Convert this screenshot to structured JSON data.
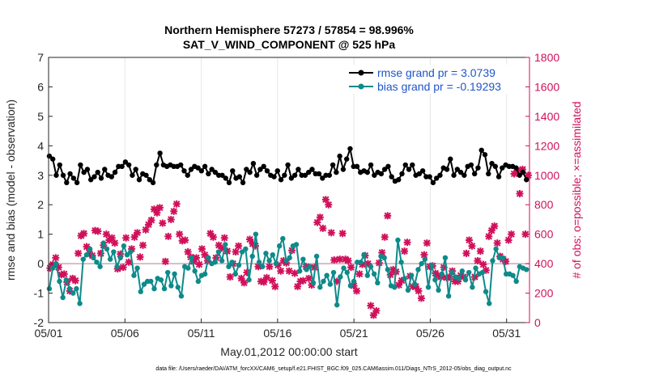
{
  "chart_data": {
    "type": "line",
    "title_line1": "Northern Hemisphere 57273 / 57854 = 98.996%",
    "title_line2": "SAT_V_WIND_COMPONENT @ 525 hPa",
    "xlabel": "May.01,2012 00:00:00 start",
    "ylabel_left": "rmse and bias (model - observation)",
    "ylabel_right": "# of obs: o=possible; ×=assimilated",
    "ylim_left": [
      -2,
      7
    ],
    "ylim_right": [
      0,
      1800
    ],
    "xlim_days": [
      0,
      31.5
    ],
    "x_ticks": [
      {
        "day": 0,
        "label": "05/01"
      },
      {
        "day": 5,
        "label": "05/06"
      },
      {
        "day": 10,
        "label": "05/11"
      },
      {
        "day": 15,
        "label": "05/16"
      },
      {
        "day": 20,
        "label": "05/21"
      },
      {
        "day": 25,
        "label": "05/26"
      },
      {
        "day": 30,
        "label": "05/31"
      }
    ],
    "y_ticks_left": [
      "-2",
      "-1",
      "0",
      "1",
      "2",
      "3",
      "4",
      "5",
      "6",
      "7"
    ],
    "y_ticks_right": [
      "0",
      "200",
      "400",
      "600",
      "800",
      "1000",
      "1200",
      "1400",
      "1600",
      "1800"
    ],
    "legend_position": "top-right",
    "series": [
      {
        "name": "rmse grand pr = 3.0739",
        "color": "#000000",
        "marker": "filled-circle",
        "values": [
          3.65,
          3.55,
          3.0,
          3.35,
          3.0,
          2.75,
          3.05,
          2.9,
          2.75,
          3.35,
          3.1,
          3.2,
          2.85,
          2.95,
          3.1,
          2.9,
          3.2,
          3.0,
          2.95,
          3.1,
          3.3,
          3.3,
          3.45,
          3.35,
          3.0,
          3.2,
          2.85,
          3.05,
          3.0,
          2.85,
          2.75,
          3.35,
          3.75,
          3.35,
          3.3,
          3.35,
          3.3,
          3.3,
          3.35,
          3.15,
          3.0,
          3.2,
          3.3,
          3.25,
          3.15,
          3.3,
          3.05,
          3.2,
          3.1,
          3.0,
          3.0,
          2.9,
          2.75,
          3.15,
          2.9,
          2.95,
          2.75,
          3.2,
          3.1,
          3.4,
          3.0,
          3.2,
          3.3,
          3.15,
          3.0,
          2.95,
          3.15,
          2.85,
          3.0,
          3.35,
          2.9,
          3.0,
          3.2,
          3.0,
          3.0,
          3.1,
          3.2,
          3.05,
          3.05,
          2.9,
          3.0,
          3.0,
          3.35,
          3.1,
          3.65,
          3.2,
          3.55,
          3.9,
          3.3,
          3.3,
          3.1,
          3.15,
          3.1,
          3.35,
          3.0,
          3.1,
          3.05,
          3.2,
          3.3,
          2.95,
          2.8,
          2.85,
          3.05,
          3.35,
          3.2,
          3.35,
          3.0,
          3.05,
          3.15,
          2.95,
          2.95,
          2.75,
          2.9,
          3.0,
          3.25,
          3.2,
          3.55,
          3.0,
          3.2,
          3.1,
          3.0,
          3.3,
          3.35,
          3.05,
          3.25,
          3.85,
          3.7,
          3.05,
          3.4,
          3.3,
          2.95,
          3.25,
          3.35,
          3.3,
          3.3,
          3.25,
          3.0,
          3.1,
          2.85
        ]
      },
      {
        "name": "bias grand pr = -0.19293",
        "color": "#0e8a8a",
        "marker": "filled-circle",
        "values": [
          -0.85,
          -0.15,
          0.0,
          -0.6,
          -1.15,
          -0.55,
          -0.85,
          -1.0,
          -0.85,
          -1.35,
          0.15,
          0.3,
          0.5,
          0.2,
          0.05,
          -0.1,
          0.7,
          0.5,
          0.15,
          0.4,
          -0.1,
          0.2,
          0.6,
          0.3,
          0.4,
          -0.4,
          -0.15,
          -0.95,
          -0.7,
          -0.6,
          -0.6,
          -0.85,
          -0.5,
          -0.55,
          -0.85,
          -0.3,
          -0.75,
          -0.35,
          -0.8,
          -1.1,
          -0.1,
          -0.15,
          0.2,
          -0.25,
          -0.6,
          -0.4,
          -0.35,
          0.2,
          0.0,
          0.05,
          0.4,
          0.1,
          0.65,
          -0.1,
          0.05,
          -0.35,
          -0.05,
          0.4,
          0.5,
          -0.55,
          0.25,
          1.0,
          0.05,
          -0.1,
          0.35,
          0.1,
          0.3,
          0.0,
          0.6,
          0.85,
          0.1,
          0.2,
          0.6,
          0.65,
          -0.25,
          0.15,
          -0.2,
          -0.1,
          -0.65,
          0.25,
          -0.8,
          -0.6,
          -0.4,
          -0.7,
          -0.3,
          -1.4,
          -0.45,
          -0.15,
          -0.3,
          -0.75,
          -0.6,
          0.05,
          0.05,
          0.3,
          -0.4,
          -0.1,
          -0.35,
          -0.65,
          0.25,
          0.2,
          -0.2,
          -0.75,
          -0.8,
          0.8,
          0.05,
          -0.5,
          -0.9,
          -0.4,
          -0.7,
          -0.2,
          0.0,
          0.15,
          -0.8,
          -0.05,
          -0.55,
          -0.9,
          -0.35,
          0.2,
          -1.1,
          -0.3,
          -0.45,
          -0.5,
          -0.25,
          -0.55,
          -0.3,
          -0.8,
          -0.15,
          -0.35,
          -0.3,
          -0.95,
          -1.35,
          0.1,
          0.5,
          0.2,
          0.2,
          -0.35,
          -0.35,
          -0.4,
          -0.6,
          -0.1,
          -0.15,
          -0.2
        ]
      }
    ],
    "obs_assimilated": [
      370,
      395,
      440,
      375,
      325,
      330,
      275,
      215,
      300,
      285,
      470,
      590,
      605,
      515,
      470,
      455,
      625,
      620,
      470,
      525,
      600,
      560,
      575,
      540,
      365,
      465,
      375,
      575,
      410,
      500,
      580,
      610,
      445,
      525,
      630,
      665,
      695,
      770,
      745,
      780,
      675,
      415,
      585,
      700,
      755,
      805,
      600,
      555,
      560,
      480,
      445,
      415,
      440,
      395,
      500,
      460,
      420,
      605,
      580,
      440,
      525,
      505,
      575,
      485,
      310,
      400,
      480,
      520,
      300,
      270,
      340,
      565,
      535,
      520,
      380,
      280,
      275,
      305,
      380,
      285,
      245,
      390,
      350,
      420,
      405,
      350,
      490,
      335,
      245,
      280,
      285,
      380,
      300,
      255,
      375,
      680,
      715,
      640,
      835,
      800,
      610,
      425,
      280,
      430,
      605,
      430,
      420,
      375,
      250,
      215,
      330,
      395,
      455,
      400,
      115,
      50,
      80,
      405,
      475,
      580,
      725,
      325,
      360,
      345,
      255,
      285,
      485,
      545,
      315,
      245,
      245,
      215,
      165,
      460,
      540,
      380,
      385,
      335,
      320,
      310,
      375,
      305,
      310,
      350,
      280,
      280,
      320,
      310,
      470,
      560,
      520,
      310,
      420,
      485,
      395,
      355,
      585,
      625,
      655,
      540,
      450,
      430,
      415,
      560,
      600,
      1010,
      1030,
      875,
      1040,
      600,
      1000
    ]
  },
  "legend": {
    "rmse_label": "rmse grand pr = 3.0739",
    "bias_label": "bias grand pr = -0.19293"
  },
  "footnote": "data file: /Users/raeder/DAI/ATM_forcXX/CAM6_setup/f.e21.FHIST_BGC.f09_025.CAM6assim.011/Diags_NTrS_2012-05/obs_diag_output.nc",
  "colors": {
    "rmse": "#000000",
    "bias": "#0e8a8a",
    "obs": "#d1105a",
    "zero_line": "#c0a0b0"
  }
}
